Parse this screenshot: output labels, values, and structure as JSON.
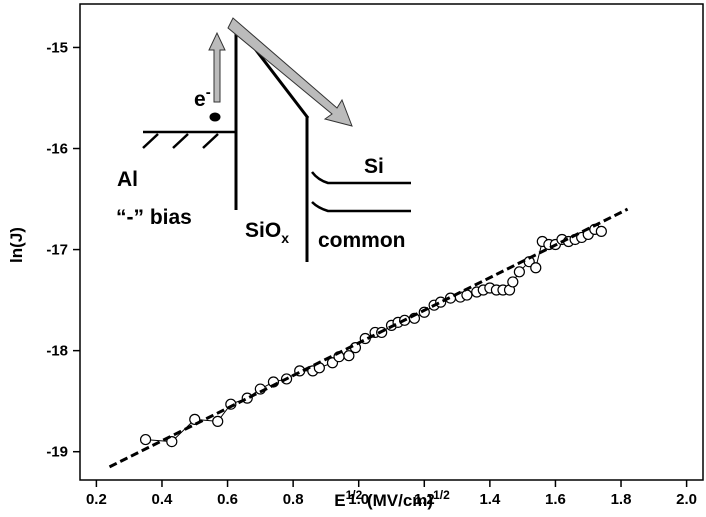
{
  "chart_data": {
    "type": "scatter",
    "ylabel": "ln(J)",
    "xlabel": [
      "E",
      "1/2",
      " (MV/cm)",
      "1/2"
    ],
    "xlim": [
      0.15,
      2.05
    ],
    "ylim": [
      -19.28,
      -14.57
    ],
    "xticks": [
      0.2,
      0.4,
      0.6,
      0.8,
      {
        "value": 1,
        "label": "1.0"
      },
      1.2,
      1.4,
      1.6,
      1.8,
      {
        "value": 2,
        "label": "2.0"
      }
    ],
    "yticks": [
      -19,
      -18,
      -17,
      -16,
      -15
    ],
    "series": [
      {
        "color": "#000000",
        "marker": "open-circle",
        "x": [
          0.35,
          0.43,
          0.5,
          0.57,
          0.61,
          0.66,
          0.7,
          0.74,
          0.78,
          0.82,
          0.86,
          0.88,
          0.92,
          0.94,
          0.97,
          0.99,
          1.02,
          1.05,
          1.07,
          1.1,
          1.12,
          1.14,
          1.17,
          1.2,
          1.23,
          1.25,
          1.28,
          1.31,
          1.33,
          1.36,
          1.38,
          1.4,
          1.42,
          1.44,
          1.46,
          1.47,
          1.49,
          1.52,
          1.54,
          1.56,
          1.58,
          1.6,
          1.62,
          1.64,
          1.66,
          1.68,
          1.7,
          1.72,
          1.74
        ],
        "values": [
          -18.88,
          -18.9,
          -18.68,
          -18.7,
          -18.53,
          -18.47,
          -18.38,
          -18.31,
          -18.28,
          -18.2,
          -18.2,
          -18.17,
          -18.12,
          -18.06,
          -18.05,
          -17.97,
          -17.88,
          -17.82,
          -17.82,
          -17.75,
          -17.72,
          -17.7,
          -17.68,
          -17.62,
          -17.55,
          -17.52,
          -17.48,
          -17.47,
          -17.45,
          -17.42,
          -17.4,
          -17.38,
          -17.4,
          -17.4,
          -17.4,
          -17.32,
          -17.22,
          -17.12,
          -17.18,
          -16.92,
          -16.95,
          -16.95,
          -16.9,
          -16.92,
          -16.9,
          -16.88,
          -16.85,
          -16.8,
          -16.82
        ]
      },
      {
        "color": "#000000",
        "marker": "dashed-line",
        "x": [
          0.24,
          1.82
        ],
        "values": [
          -19.15,
          -16.6
        ]
      }
    ],
    "inset": {
      "electron": "e",
      "electron_sup": "-",
      "metal": "Al",
      "bias": "“-” bias",
      "oxide": "SiO",
      "oxide_sub": "x",
      "semiconductor": "Si",
      "common": "common"
    }
  }
}
